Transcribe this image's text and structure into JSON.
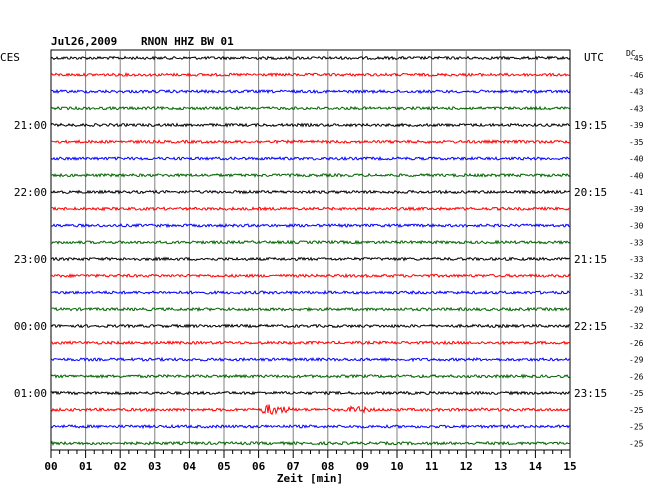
{
  "header": {
    "date": "Jul26,2009",
    "station": "RNON HHZ BW 01",
    "left_tz": "CES",
    "right_tz": "UTC",
    "dc_label": "DC"
  },
  "chart_data": {
    "type": "line",
    "title": "Jul26,2009  RNON HHZ BW 01",
    "xlabel": "Zeit [min]",
    "xlim": [
      0,
      15
    ],
    "x_ticks": [
      "00",
      "01",
      "02",
      "03",
      "04",
      "05",
      "06",
      "07",
      "08",
      "09",
      "10",
      "11",
      "12",
      "13",
      "14",
      "15"
    ],
    "left_time_labels": [
      {
        "row": 4,
        "text": "21:00"
      },
      {
        "row": 8,
        "text": "22:00"
      },
      {
        "row": 12,
        "text": "23:00"
      },
      {
        "row": 16,
        "text": "00:00"
      },
      {
        "row": 20,
        "text": "01:00"
      }
    ],
    "right_time_labels": [
      {
        "row": 4,
        "text": "19:15"
      },
      {
        "row": 8,
        "text": "20:15"
      },
      {
        "row": 12,
        "text": "21:15"
      },
      {
        "row": 16,
        "text": "22:15"
      },
      {
        "row": 20,
        "text": "23:15"
      }
    ],
    "trace_colors": [
      "#000000",
      "#ff0000",
      "#0000ff",
      "#006400"
    ],
    "dc_offsets": [
      "-45",
      "-46",
      "-43",
      "-43",
      "-39",
      "-35",
      "-40",
      "-40",
      "-41",
      "-39",
      "-30",
      "-33",
      "-33",
      "-32",
      "-31",
      "-29",
      "-32",
      "-26",
      "-29",
      "-26",
      "-25",
      "-25",
      "-25",
      "-25"
    ],
    "events": [
      {
        "row": 21,
        "start_min": 6.0,
        "end_min": 7.4,
        "level": "strong"
      },
      {
        "row": 21,
        "start_min": 8.5,
        "end_min": 9.8,
        "level": "medium"
      },
      {
        "row": 21,
        "start_min": 12.4,
        "end_min": 12.9,
        "level": "weak"
      }
    ],
    "grid": true
  }
}
